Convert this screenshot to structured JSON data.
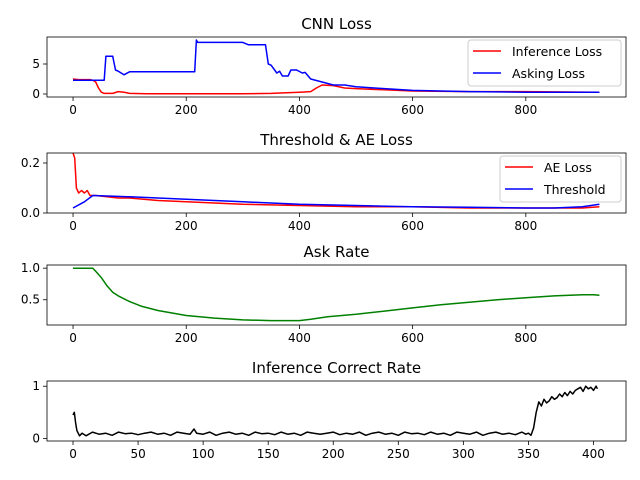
{
  "chart_data": [
    {
      "type": "line",
      "title": "CNN Loss",
      "xlim": [
        -46,
        977
      ],
      "ylim": [
        -0.5,
        9.5
      ],
      "xticks": [
        0,
        200,
        400,
        600,
        800
      ],
      "yticks": [
        0,
        5
      ],
      "legend": {
        "placement": "top-right"
      },
      "series": [
        {
          "name": "Inference Loss",
          "color": "#ff0000",
          "x": [
            0,
            10,
            20,
            30,
            35,
            40,
            45,
            50,
            55,
            60,
            70,
            80,
            90,
            100,
            130,
            200,
            300,
            350,
            400,
            420,
            430,
            440,
            460,
            480,
            500,
            600,
            700,
            800,
            930
          ],
          "y": [
            2.5,
            2.4,
            2.4,
            2.4,
            2.3,
            2.0,
            1.0,
            0.3,
            0.1,
            0.1,
            0.1,
            0.4,
            0.3,
            0.1,
            0.05,
            0.05,
            0.05,
            0.1,
            0.3,
            0.4,
            1.0,
            1.5,
            1.4,
            1.0,
            0.9,
            0.5,
            0.4,
            0.4,
            0.3
          ]
        },
        {
          "name": "Asking Loss",
          "color": "#0000ff",
          "x": [
            0,
            20,
            40,
            50,
            55,
            58,
            60,
            70,
            75,
            80,
            90,
            100,
            150,
            200,
            215,
            218,
            220,
            225,
            250,
            300,
            310,
            320,
            340,
            345,
            350,
            360,
            365,
            370,
            380,
            385,
            395,
            405,
            410,
            420,
            440,
            460,
            480,
            500,
            550,
            600,
            700,
            800,
            930
          ],
          "y": [
            2.3,
            2.3,
            2.3,
            2.3,
            2.3,
            6.3,
            6.3,
            6.3,
            4.0,
            3.8,
            3.2,
            3.7,
            3.7,
            3.7,
            3.7,
            9.0,
            8.6,
            8.6,
            8.6,
            8.6,
            8.2,
            8.2,
            8.2,
            5.0,
            4.8,
            3.5,
            3.8,
            3.0,
            3.0,
            4.0,
            4.0,
            3.5,
            3.6,
            2.5,
            2.0,
            1.5,
            1.5,
            1.2,
            0.9,
            0.6,
            0.4,
            0.3,
            0.3
          ]
        }
      ]
    },
    {
      "type": "line",
      "title": "Threshold & AE Loss",
      "xlim": [
        -46,
        977
      ],
      "ylim": [
        0,
        0.24
      ],
      "xticks": [
        0,
        200,
        400,
        600,
        800
      ],
      "yticks": [
        0.0,
        0.2
      ],
      "legend": {
        "placement": "top-right"
      },
      "series": [
        {
          "name": "AE Loss",
          "color": "#ff0000",
          "x": [
            0,
            3,
            6,
            10,
            15,
            20,
            25,
            30,
            40,
            60,
            80,
            100,
            150,
            200,
            300,
            400,
            500,
            600,
            700,
            800,
            900,
            930
          ],
          "y": [
            0.24,
            0.22,
            0.1,
            0.08,
            0.09,
            0.08,
            0.09,
            0.07,
            0.07,
            0.065,
            0.06,
            0.06,
            0.05,
            0.045,
            0.035,
            0.03,
            0.025,
            0.025,
            0.02,
            0.02,
            0.02,
            0.025
          ]
        },
        {
          "name": "Threshold",
          "color": "#0000ff",
          "x": [
            0,
            20,
            35,
            60,
            100,
            200,
            300,
            400,
            500,
            600,
            700,
            800,
            850,
            900,
            930
          ],
          "y": [
            0.02,
            0.045,
            0.07,
            0.068,
            0.065,
            0.055,
            0.045,
            0.035,
            0.03,
            0.025,
            0.023,
            0.02,
            0.02,
            0.025,
            0.035
          ]
        }
      ]
    },
    {
      "type": "line",
      "title": "Ask Rate",
      "xlim": [
        -46,
        977
      ],
      "ylim": [
        0.1,
        1.05
      ],
      "xticks": [
        0,
        200,
        400,
        600,
        800
      ],
      "yticks": [
        0.5,
        1.0
      ],
      "series": [
        {
          "color": "#008000",
          "x": [
            0,
            10,
            20,
            35,
            40,
            50,
            60,
            70,
            80,
            100,
            120,
            150,
            200,
            250,
            300,
            350,
            400,
            420,
            450,
            500,
            550,
            600,
            650,
            700,
            750,
            800,
            850,
            900,
            920,
            930
          ],
          "y": [
            1.0,
            1.0,
            1.0,
            1.0,
            0.95,
            0.85,
            0.72,
            0.62,
            0.56,
            0.47,
            0.4,
            0.33,
            0.25,
            0.21,
            0.18,
            0.17,
            0.17,
            0.19,
            0.23,
            0.27,
            0.32,
            0.37,
            0.42,
            0.46,
            0.5,
            0.53,
            0.56,
            0.58,
            0.58,
            0.57
          ]
        }
      ]
    },
    {
      "type": "line",
      "title": "Inference Correct Rate",
      "xlim": [
        -20,
        425
      ],
      "ylim": [
        -0.05,
        1.1
      ],
      "xticks": [
        0,
        50,
        100,
        150,
        200,
        250,
        300,
        350,
        400
      ],
      "yticks": [
        0,
        1
      ],
      "series": [
        {
          "color": "#000000",
          "x": [
            0,
            1,
            2,
            3,
            4,
            5,
            7,
            10,
            15,
            20,
            25,
            30,
            35,
            40,
            45,
            50,
            55,
            60,
            65,
            70,
            75,
            80,
            85,
            90,
            93,
            95,
            100,
            105,
            110,
            115,
            120,
            125,
            130,
            135,
            140,
            145,
            150,
            155,
            160,
            165,
            170,
            175,
            180,
            185,
            190,
            195,
            200,
            205,
            210,
            215,
            220,
            225,
            230,
            235,
            240,
            245,
            250,
            255,
            260,
            265,
            270,
            275,
            280,
            285,
            290,
            295,
            300,
            305,
            310,
            315,
            320,
            325,
            330,
            335,
            340,
            345,
            348,
            350,
            352,
            354,
            356,
            358,
            360,
            362,
            364,
            366,
            368,
            370,
            372,
            374,
            376,
            378,
            380,
            382,
            384,
            386,
            388,
            390,
            392,
            394,
            396,
            398,
            400,
            402,
            403
          ],
          "y": [
            0.45,
            0.5,
            0.3,
            0.15,
            0.1,
            0.05,
            0.1,
            0.05,
            0.12,
            0.08,
            0.1,
            0.06,
            0.12,
            0.09,
            0.1,
            0.07,
            0.1,
            0.12,
            0.08,
            0.1,
            0.06,
            0.12,
            0.1,
            0.08,
            0.18,
            0.1,
            0.08,
            0.12,
            0.06,
            0.1,
            0.12,
            0.08,
            0.1,
            0.06,
            0.12,
            0.09,
            0.1,
            0.07,
            0.12,
            0.08,
            0.1,
            0.06,
            0.12,
            0.1,
            0.08,
            0.1,
            0.12,
            0.07,
            0.1,
            0.08,
            0.12,
            0.06,
            0.1,
            0.12,
            0.08,
            0.1,
            0.06,
            0.12,
            0.09,
            0.1,
            0.07,
            0.12,
            0.08,
            0.1,
            0.06,
            0.12,
            0.1,
            0.08,
            0.12,
            0.06,
            0.1,
            0.12,
            0.08,
            0.1,
            0.07,
            0.12,
            0.08,
            0.1,
            0.06,
            0.2,
            0.5,
            0.7,
            0.62,
            0.75,
            0.68,
            0.72,
            0.8,
            0.75,
            0.78,
            0.85,
            0.8,
            0.88,
            0.82,
            0.9,
            0.85,
            0.92,
            0.95,
            0.98,
            0.9,
            1.0,
            0.95,
            0.98,
            0.92,
            1.0,
            0.95
          ]
        }
      ]
    }
  ]
}
